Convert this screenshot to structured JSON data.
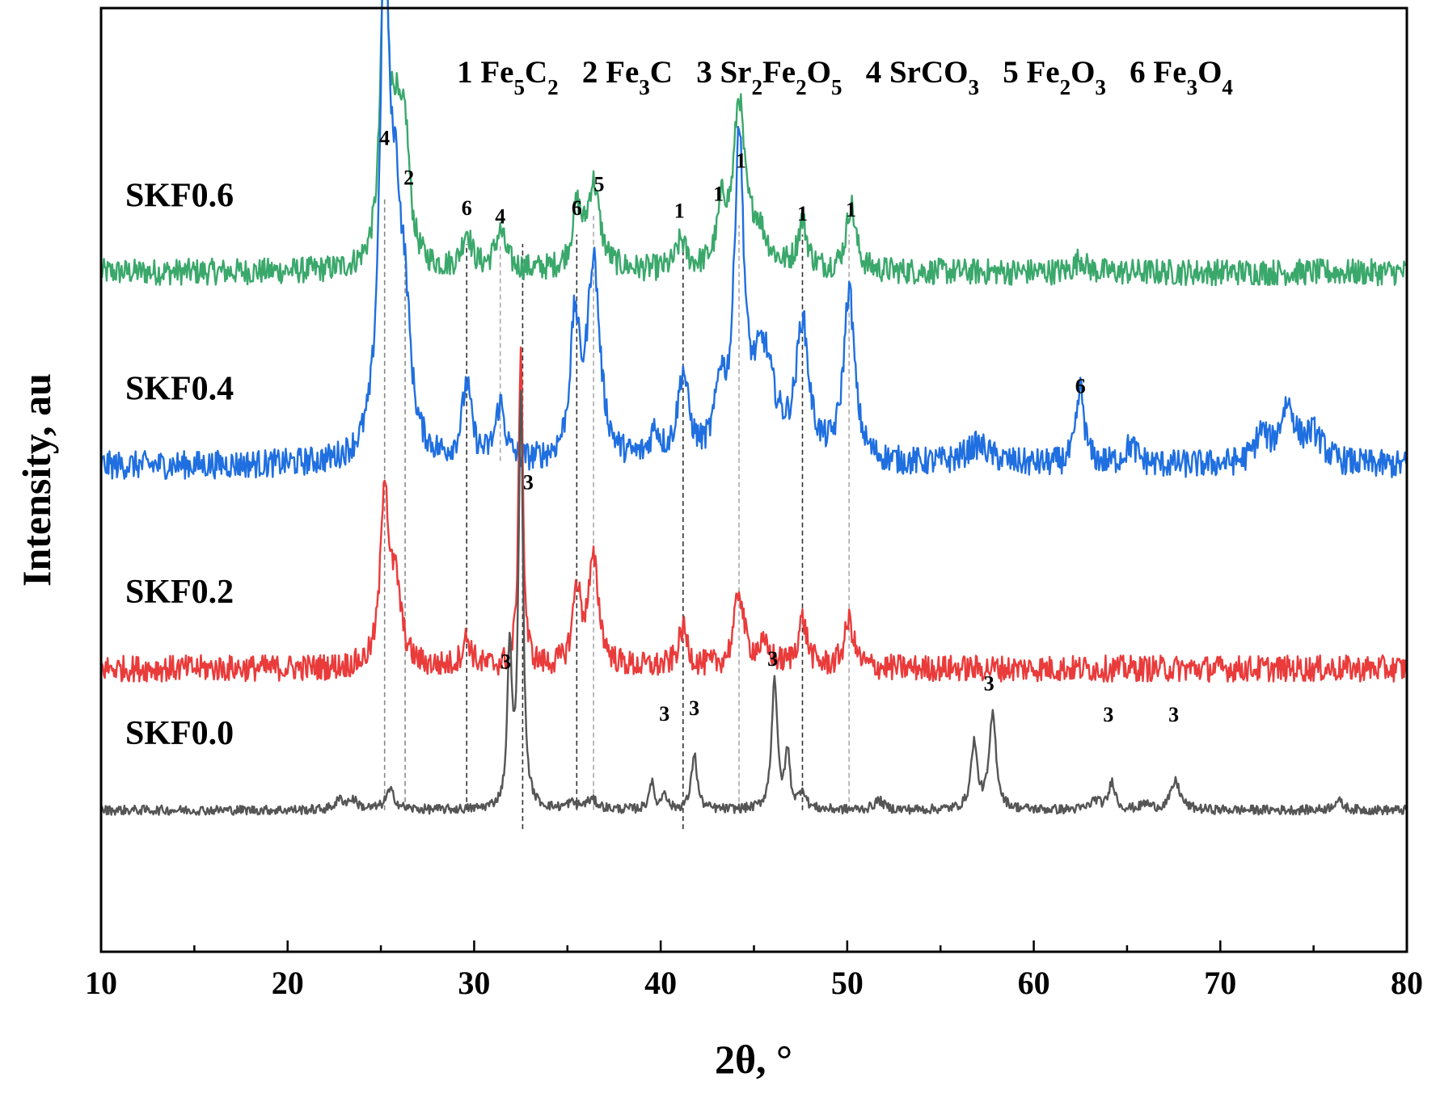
{
  "chart_data": {
    "type": "line",
    "title": "",
    "xlabel": "2θ, °",
    "ylabel": "Intensity, au",
    "xlim": [
      10,
      80
    ],
    "xticks": [
      "10",
      "20",
      "30",
      "40",
      "50",
      "60",
      "70",
      "80"
    ],
    "grid": false,
    "phase_legend": [
      {
        "num": "1",
        "parts": [
          [
            "Fe",
            ""
          ],
          [
            "5",
            "sub"
          ],
          [
            "C",
            ""
          ],
          [
            "2",
            "sub"
          ]
        ]
      },
      {
        "num": "2",
        "parts": [
          [
            "Fe",
            ""
          ],
          [
            "3",
            "sub"
          ],
          [
            "C",
            ""
          ]
        ]
      },
      {
        "num": "3",
        "parts": [
          [
            "Sr",
            ""
          ],
          [
            "2",
            "sub"
          ],
          [
            "Fe",
            ""
          ],
          [
            "2",
            "sub"
          ],
          [
            "O",
            ""
          ],
          [
            "5",
            "sub"
          ]
        ]
      },
      {
        "num": "4",
        "parts": [
          [
            "SrCO",
            ""
          ],
          [
            "3",
            "sub"
          ]
        ]
      },
      {
        "num": "5",
        "parts": [
          [
            "Fe",
            ""
          ],
          [
            "2",
            "sub"
          ],
          [
            "O",
            ""
          ],
          [
            "3",
            "sub"
          ]
        ]
      },
      {
        "num": "6",
        "parts": [
          [
            "Fe",
            ""
          ],
          [
            "3",
            "sub"
          ],
          [
            "O",
            ""
          ],
          [
            "4",
            "sub"
          ]
        ]
      }
    ],
    "series": [
      {
        "name": "SKF0.6",
        "color": "#3aa86b",
        "baseline": 0.72,
        "noise": 0.014,
        "peaks": [
          [
            25.2,
            0.33,
            0.25
          ],
          [
            25.8,
            0.12,
            0.35
          ],
          [
            26.3,
            0.12,
            0.3
          ],
          [
            29.6,
            0.04,
            0.3
          ],
          [
            31.4,
            0.04,
            0.35
          ],
          [
            35.5,
            0.06,
            0.3
          ],
          [
            36.4,
            0.09,
            0.4
          ],
          [
            41.1,
            0.03,
            0.3
          ],
          [
            43.3,
            0.06,
            0.3
          ],
          [
            44.2,
            0.17,
            0.35
          ],
          [
            45.2,
            0.04,
            0.6
          ],
          [
            47.6,
            0.05,
            0.3
          ],
          [
            50.2,
            0.07,
            0.3
          ],
          [
            62.5,
            0.015,
            0.3
          ]
        ]
      },
      {
        "name": "SKF0.4",
        "color": "#1f6fe0",
        "baseline": 0.515,
        "noise": 0.015,
        "peaks": [
          [
            25.2,
            0.53,
            0.3
          ],
          [
            25.8,
            0.2,
            0.35
          ],
          [
            26.3,
            0.12,
            0.35
          ],
          [
            29.6,
            0.08,
            0.3
          ],
          [
            31.4,
            0.06,
            0.3
          ],
          [
            35.4,
            0.14,
            0.3
          ],
          [
            36.4,
            0.21,
            0.4
          ],
          [
            39.7,
            0.03,
            0.3
          ],
          [
            41.2,
            0.09,
            0.35
          ],
          [
            43.2,
            0.07,
            0.3
          ],
          [
            44.2,
            0.33,
            0.3
          ],
          [
            45.5,
            0.11,
            0.7
          ],
          [
            47.6,
            0.14,
            0.4
          ],
          [
            50.1,
            0.18,
            0.35
          ],
          [
            57.0,
            0.02,
            0.8
          ],
          [
            62.5,
            0.08,
            0.25
          ],
          [
            65.2,
            0.02,
            0.4
          ],
          [
            72.2,
            0.03,
            0.4
          ],
          [
            73.6,
            0.06,
            0.5
          ],
          [
            75.0,
            0.03,
            0.6
          ]
        ]
      },
      {
        "name": "SKF0.2",
        "color": "#ea3b3b",
        "baseline": 0.3,
        "noise": 0.014,
        "peaks": [
          [
            25.2,
            0.19,
            0.25
          ],
          [
            25.8,
            0.08,
            0.35
          ],
          [
            29.6,
            0.03,
            0.3
          ],
          [
            32.5,
            0.35,
            0.13
          ],
          [
            35.5,
            0.08,
            0.25
          ],
          [
            36.4,
            0.11,
            0.35
          ],
          [
            41.2,
            0.04,
            0.3
          ],
          [
            44.2,
            0.08,
            0.3
          ],
          [
            45.5,
            0.02,
            0.5
          ],
          [
            47.6,
            0.05,
            0.3
          ],
          [
            50.1,
            0.05,
            0.3
          ]
        ]
      },
      {
        "name": "SKF0.0",
        "color": "#555555",
        "baseline": 0.15,
        "noise": 0.005,
        "peaks": [
          [
            22.8,
            0.01,
            0.3
          ],
          [
            23.5,
            0.01,
            0.3
          ],
          [
            25.5,
            0.02,
            0.3
          ],
          [
            31.9,
            0.17,
            0.14
          ],
          [
            32.5,
            0.44,
            0.14
          ],
          [
            35.2,
            0.006,
            0.3
          ],
          [
            36.3,
            0.01,
            0.4
          ],
          [
            39.5,
            0.03,
            0.15
          ],
          [
            40.2,
            0.02,
            0.15
          ],
          [
            41.8,
            0.06,
            0.18
          ],
          [
            46.1,
            0.14,
            0.18
          ],
          [
            46.8,
            0.06,
            0.15
          ],
          [
            47.6,
            0.02,
            0.2
          ],
          [
            51.7,
            0.01,
            0.3
          ],
          [
            56.8,
            0.07,
            0.2
          ],
          [
            57.8,
            0.1,
            0.22
          ],
          [
            63.3,
            0.01,
            0.3
          ],
          [
            64.2,
            0.03,
            0.2
          ],
          [
            66.0,
            0.006,
            0.3
          ],
          [
            67.6,
            0.03,
            0.3
          ],
          [
            76.3,
            0.01,
            0.3
          ]
        ]
      }
    ],
    "reference_lines": [
      {
        "x": 25.2,
        "y": [
          0.15,
          0.8
        ],
        "color": "#888888"
      },
      {
        "x": 26.3,
        "y": [
          0.15,
          0.75
        ],
        "color": "#888888"
      },
      {
        "x": 29.6,
        "y": [
          0.15,
          0.75
        ],
        "color": "#333333"
      },
      {
        "x": 31.4,
        "y": [
          0.52,
          0.75
        ],
        "color": "#aaaaaa"
      },
      {
        "x": 32.6,
        "y": [
          0.13,
          0.75
        ],
        "color": "#333333"
      },
      {
        "x": 35.5,
        "y": [
          0.15,
          0.76
        ],
        "color": "#333333"
      },
      {
        "x": 36.4,
        "y": [
          0.15,
          0.78
        ],
        "color": "#aaaaaa"
      },
      {
        "x": 41.2,
        "y": [
          0.13,
          0.75
        ],
        "color": "#333333"
      },
      {
        "x": 44.2,
        "y": [
          0.15,
          0.77
        ],
        "color": "#aaaaaa"
      },
      {
        "x": 47.6,
        "y": [
          0.15,
          0.76
        ],
        "color": "#333333"
      },
      {
        "x": 50.1,
        "y": [
          0.15,
          0.76
        ],
        "color": "#aaaaaa"
      }
    ],
    "peak_labels": [
      {
        "text": "4",
        "x": 25.2,
        "y": 0.855
      },
      {
        "text": "2",
        "x": 26.5,
        "y": 0.813
      },
      {
        "text": "6",
        "x": 29.6,
        "y": 0.781
      },
      {
        "text": "4",
        "x": 31.4,
        "y": 0.772
      },
      {
        "text": "6",
        "x": 35.5,
        "y": 0.781
      },
      {
        "text": "5",
        "x": 36.7,
        "y": 0.806
      },
      {
        "text": "1",
        "x": 41.0,
        "y": 0.778
      },
      {
        "text": "1",
        "x": 43.1,
        "y": 0.796
      },
      {
        "text": "1",
        "x": 44.3,
        "y": 0.831
      },
      {
        "text": "1",
        "x": 47.6,
        "y": 0.775
      },
      {
        "text": "1",
        "x": 50.2,
        "y": 0.779
      },
      {
        "text": "6",
        "x": 62.5,
        "y": 0.592
      },
      {
        "text": "3",
        "x": 32.9,
        "y": 0.49
      },
      {
        "text": "3",
        "x": 31.7,
        "y": 0.3
      },
      {
        "text": "3",
        "x": 40.2,
        "y": 0.245
      },
      {
        "text": "3",
        "x": 41.8,
        "y": 0.251
      },
      {
        "text": "3",
        "x": 46.0,
        "y": 0.303
      },
      {
        "text": "3",
        "x": 57.6,
        "y": 0.277
      },
      {
        "text": "3",
        "x": 64.0,
        "y": 0.244
      },
      {
        "text": "3",
        "x": 67.5,
        "y": 0.244
      }
    ]
  }
}
